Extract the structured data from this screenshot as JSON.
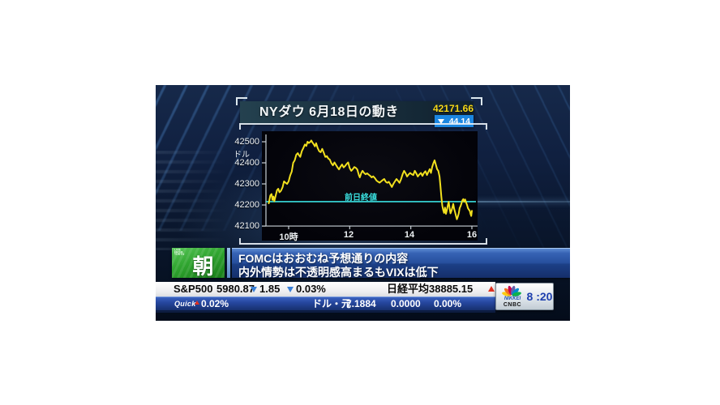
{
  "broadcast": {
    "chart_panel": {
      "title": "NYダウ 6月18日の動き",
      "price": "42171.66",
      "change_value": "44.14",
      "unit_label": "ドル",
      "prev_close_label": "前日終値",
      "y_tick_labels": [
        "42500",
        "42400",
        "42300",
        "42200",
        "42100"
      ],
      "x_tick_labels": [
        "10時",
        "12",
        "14",
        "16"
      ]
    },
    "lower_third": {
      "live_lines": [
        "LIVE",
        "FROM",
        "TOKYO"
      ],
      "badge_char": "朝",
      "headline_line1": "FOMCはおおむね予想通りの内容",
      "headline_line2": "内外情勢は不透明感高まるもVIXは低下"
    },
    "ticker": {
      "sp500_label": "S&P500",
      "sp500_price": "5980.87",
      "sp500_change": "1.85",
      "sp500_change_pct": "0.03%",
      "nikkei_label": "日経平均",
      "nikkei_price": "38885.15",
      "quick_label": "Quick",
      "quick_pct": "0.02%",
      "fx_pair": "ドル・元",
      "fx_rate": "7.1884",
      "fx_change": "0.0000",
      "fx_change_pct": "0.00%",
      "brand_top": "NIKKEI",
      "brand_bottom": "CNBC",
      "clock": "8 :20"
    }
  },
  "colors": {
    "line": "#f2e01e",
    "prev_close": "#3ae0e0",
    "axis": "#c8d0d6",
    "price_text": "#f5d718",
    "change_box": "#1b86e0",
    "down_triangle": "#3a80d8",
    "up_triangle": "#e03020"
  },
  "chart_data": {
    "type": "line",
    "title": "NYダウ 6月18日の動き",
    "ylabel": "ドル",
    "x_tick_labels": [
      "10時",
      "12",
      "14",
      "16"
    ],
    "x_tick_hours": [
      10,
      12,
      14,
      16
    ],
    "y_ticks": [
      42500,
      42400,
      42300,
      42200,
      42100
    ],
    "x_range_hours": [
      9.124,
      16.186
    ],
    "y_range": [
      42031,
      42550
    ],
    "grid": false,
    "prev_close": 42215.8,
    "prev_close_label": "前日終値",
    "close": 42171.66,
    "change": -44.14,
    "series": [
      {
        "name": "NYダウ 6月18日",
        "color": "#f2e01e",
        "points": [
          [
            9.35,
            42208
          ],
          [
            9.4,
            42245
          ],
          [
            9.44,
            42252
          ],
          [
            9.47,
            42224
          ],
          [
            9.5,
            42240
          ],
          [
            9.53,
            42218
          ],
          [
            9.58,
            42248
          ],
          [
            9.62,
            42270
          ],
          [
            9.66,
            42277
          ],
          [
            9.7,
            42260
          ],
          [
            9.75,
            42268
          ],
          [
            9.8,
            42284
          ],
          [
            9.85,
            42312
          ],
          [
            9.9,
            42305
          ],
          [
            9.95,
            42300
          ],
          [
            10.0,
            42312
          ],
          [
            10.05,
            42340
          ],
          [
            10.1,
            42358
          ],
          [
            10.15,
            42400
          ],
          [
            10.2,
            42412
          ],
          [
            10.25,
            42438
          ],
          [
            10.3,
            42446
          ],
          [
            10.34,
            42436
          ],
          [
            10.38,
            42428
          ],
          [
            10.43,
            42455
          ],
          [
            10.48,
            42470
          ],
          [
            10.53,
            42487
          ],
          [
            10.58,
            42480
          ],
          [
            10.62,
            42500
          ],
          [
            10.66,
            42494
          ],
          [
            10.7,
            42498
          ],
          [
            10.74,
            42506
          ],
          [
            10.78,
            42496
          ],
          [
            10.82,
            42488
          ],
          [
            10.86,
            42478
          ],
          [
            10.9,
            42493
          ],
          [
            10.95,
            42470
          ],
          [
            11.0,
            42455
          ],
          [
            11.05,
            42450
          ],
          [
            11.1,
            42466
          ],
          [
            11.15,
            42448
          ],
          [
            11.2,
            42428
          ],
          [
            11.25,
            42432
          ],
          [
            11.3,
            42420
          ],
          [
            11.35,
            42415
          ],
          [
            11.4,
            42398
          ],
          [
            11.45,
            42388
          ],
          [
            11.5,
            42402
          ],
          [
            11.55,
            42390
          ],
          [
            11.6,
            42378
          ],
          [
            11.65,
            42369
          ],
          [
            11.7,
            42382
          ],
          [
            11.75,
            42392
          ],
          [
            11.8,
            42378
          ],
          [
            11.85,
            42385
          ],
          [
            11.9,
            42395
          ],
          [
            11.95,
            42402
          ],
          [
            12.0,
            42375
          ],
          [
            12.05,
            42362
          ],
          [
            12.1,
            42370
          ],
          [
            12.15,
            42380
          ],
          [
            12.2,
            42376
          ],
          [
            12.25,
            42368
          ],
          [
            12.3,
            42342
          ],
          [
            12.33,
            42331
          ],
          [
            12.38,
            42352
          ],
          [
            12.42,
            42362
          ],
          [
            12.47,
            42352
          ],
          [
            12.52,
            42346
          ],
          [
            12.57,
            42350
          ],
          [
            12.62,
            42344
          ],
          [
            12.67,
            42338
          ],
          [
            12.72,
            42331
          ],
          [
            12.77,
            42336
          ],
          [
            12.82,
            42328
          ],
          [
            12.88,
            42315
          ],
          [
            12.93,
            42310
          ],
          [
            12.98,
            42306
          ],
          [
            13.03,
            42312
          ],
          [
            13.08,
            42318
          ],
          [
            13.13,
            42323
          ],
          [
            13.18,
            42310
          ],
          [
            13.23,
            42305
          ],
          [
            13.28,
            42310
          ],
          [
            13.33,
            42298
          ],
          [
            13.38,
            42285
          ],
          [
            13.43,
            42300
          ],
          [
            13.48,
            42312
          ],
          [
            13.53,
            42323
          ],
          [
            13.58,
            42315
          ],
          [
            13.63,
            42305
          ],
          [
            13.68,
            42322
          ],
          [
            13.73,
            42345
          ],
          [
            13.78,
            42362
          ],
          [
            13.83,
            42350
          ],
          [
            13.88,
            42335
          ],
          [
            13.93,
            42345
          ],
          [
            13.98,
            42352
          ],
          [
            14.03,
            42346
          ],
          [
            14.08,
            42342
          ],
          [
            14.13,
            42362
          ],
          [
            14.18,
            42350
          ],
          [
            14.23,
            42335
          ],
          [
            14.28,
            42345
          ],
          [
            14.33,
            42352
          ],
          [
            14.38,
            42338
          ],
          [
            14.43,
            42352
          ],
          [
            14.48,
            42360
          ],
          [
            14.53,
            42342
          ],
          [
            14.58,
            42358
          ],
          [
            14.62,
            42370
          ],
          [
            14.66,
            42352
          ],
          [
            14.7,
            42380
          ],
          [
            14.74,
            42398
          ],
          [
            14.78,
            42412
          ],
          [
            14.82,
            42392
          ],
          [
            14.86,
            42370
          ],
          [
            14.9,
            42362
          ],
          [
            14.94,
            42335
          ],
          [
            14.97,
            42290
          ],
          [
            15.0,
            42240
          ],
          [
            15.03,
            42196
          ],
          [
            15.06,
            42176
          ],
          [
            15.09,
            42162
          ],
          [
            15.12,
            42188
          ],
          [
            15.15,
            42158
          ],
          [
            15.18,
            42175
          ],
          [
            15.21,
            42196
          ],
          [
            15.24,
            42215
          ],
          [
            15.27,
            42185
          ],
          [
            15.3,
            42160
          ],
          [
            15.33,
            42172
          ],
          [
            15.36,
            42188
          ],
          [
            15.39,
            42205
          ],
          [
            15.42,
            42182
          ],
          [
            15.45,
            42165
          ],
          [
            15.48,
            42148
          ],
          [
            15.51,
            42132
          ],
          [
            15.54,
            42145
          ],
          [
            15.57,
            42160
          ],
          [
            15.6,
            42185
          ],
          [
            15.63,
            42195
          ],
          [
            15.66,
            42208
          ],
          [
            15.69,
            42222
          ],
          [
            15.72,
            42228
          ],
          [
            15.75,
            42215
          ],
          [
            15.78,
            42226
          ],
          [
            15.81,
            42212
          ],
          [
            15.84,
            42200
          ],
          [
            15.87,
            42185
          ],
          [
            15.9,
            42178
          ],
          [
            15.93,
            42172
          ],
          [
            15.96,
            42155
          ],
          [
            15.98,
            42148
          ],
          [
            16.0,
            42172
          ]
        ]
      }
    ]
  }
}
